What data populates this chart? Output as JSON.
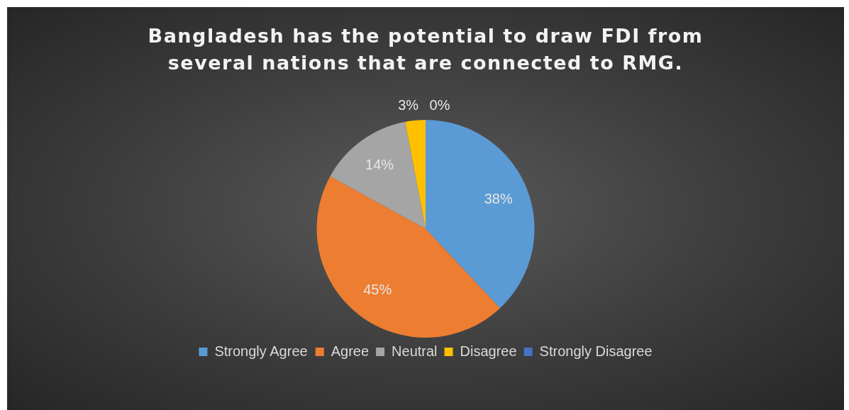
{
  "chart_data": {
    "type": "pie",
    "title": "Bangladesh has the potential to draw FDI from several nations that are connected to RMG.",
    "categories": [
      "Strongly Agree",
      "Agree",
      "Neutral",
      "Disagree",
      "Strongly Disagree"
    ],
    "values": [
      38,
      45,
      14,
      3,
      0
    ],
    "colors": [
      "#5b9bd5",
      "#ed7d31",
      "#a5a5a5",
      "#ffc000",
      "#4472c4"
    ],
    "value_labels": [
      "38%",
      "45%",
      "14%",
      "3%",
      "0%"
    ],
    "legend": "bottom"
  }
}
